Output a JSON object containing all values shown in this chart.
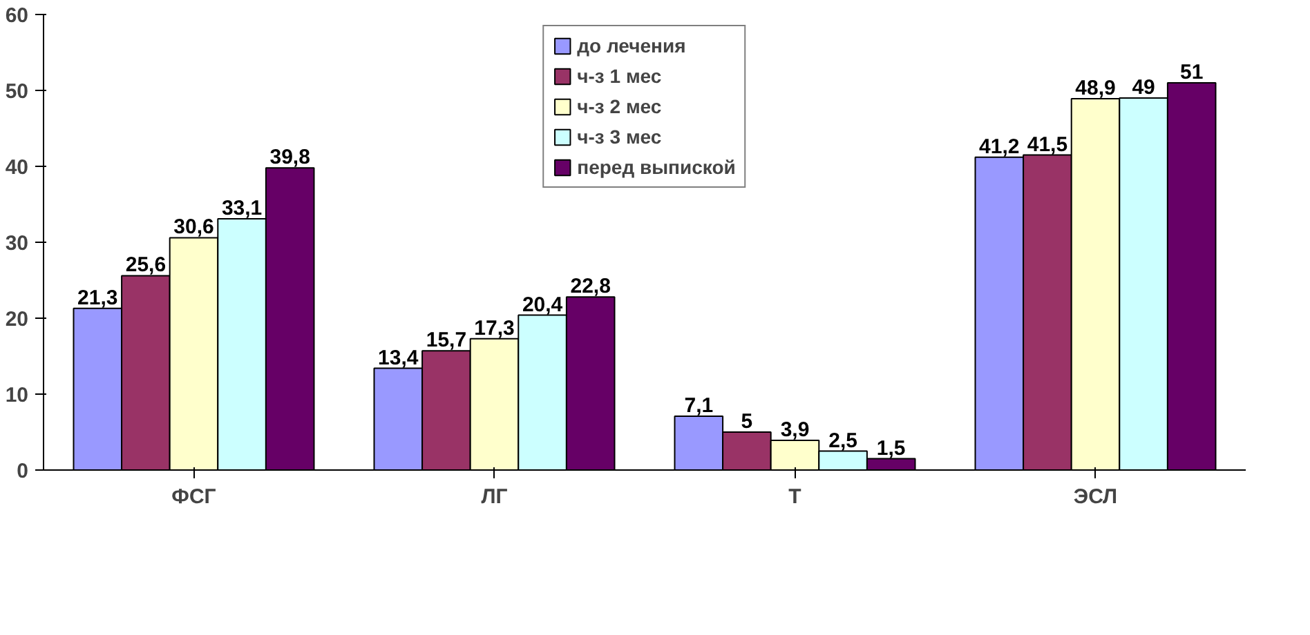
{
  "chart_data": {
    "type": "bar",
    "categories": [
      "ФСГ",
      "ЛГ",
      "Т",
      "ЭСЛ"
    ],
    "series": [
      {
        "name": "до лечения",
        "color": "#9999ff",
        "values": [
          21.3,
          13.4,
          7.1,
          41.2
        ],
        "value_labels": [
          "21,3",
          "13,4",
          "7,1",
          "41,2"
        ]
      },
      {
        "name": "ч-з 1 мес",
        "color": "#993366",
        "values": [
          25.6,
          15.7,
          5,
          41.5
        ],
        "value_labels": [
          "25,6",
          "15,7",
          "5",
          "41,5"
        ]
      },
      {
        "name": "ч-з 2 мес",
        "color": "#ffffcc",
        "values": [
          30.6,
          17.3,
          3.9,
          48.9
        ],
        "value_labels": [
          "30,6",
          "17,3",
          "3,9",
          "48,9"
        ]
      },
      {
        "name": "ч-з 3 мес",
        "color": "#ccffff",
        "values": [
          33.1,
          20.4,
          2.5,
          49
        ],
        "value_labels": [
          "33,1",
          "20,4",
          "2,5",
          "49"
        ]
      },
      {
        "name": "перед выпиской",
        "color": "#660066",
        "values": [
          39.8,
          22.8,
          1.5,
          51
        ],
        "value_labels": [
          "39,8",
          "22,8",
          "1,5",
          "51"
        ]
      }
    ],
    "ylim": [
      0,
      60
    ],
    "yticks": [
      0,
      10,
      20,
      30,
      40,
      50,
      60
    ],
    "grid": false,
    "legend": "top"
  }
}
